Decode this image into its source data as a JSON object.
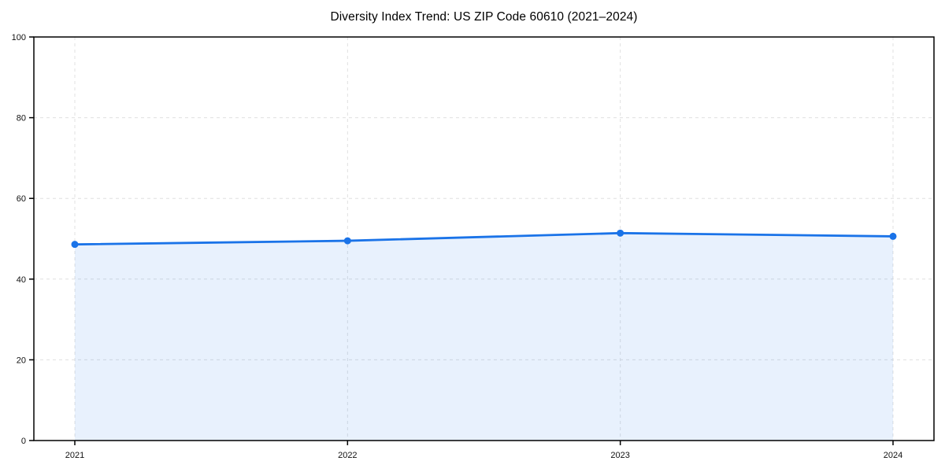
{
  "chart_data": {
    "type": "area",
    "title": "Diversity Index Trend: US ZIP Code 60610 (2021–2024)",
    "categories": [
      "2021",
      "2022",
      "2023",
      "2024"
    ],
    "values": [
      48.6,
      49.5,
      51.4,
      50.6
    ],
    "series_name": "Diversity Index",
    "xlabel": "",
    "ylabel": "",
    "ylim": [
      0,
      100
    ],
    "yticks": [
      0,
      20,
      40,
      60,
      80,
      100
    ],
    "grid": true,
    "grid_style": "dashed",
    "legend": false,
    "marker": "circle",
    "colors": {
      "line": "#1a73e8",
      "marker": "#1a73e8",
      "fill": "#1a73e8",
      "fill_opacity": 0.1,
      "grid": "#e0e0e0",
      "axis": "#000000",
      "background": "#ffffff",
      "text": "#111111"
    }
  }
}
